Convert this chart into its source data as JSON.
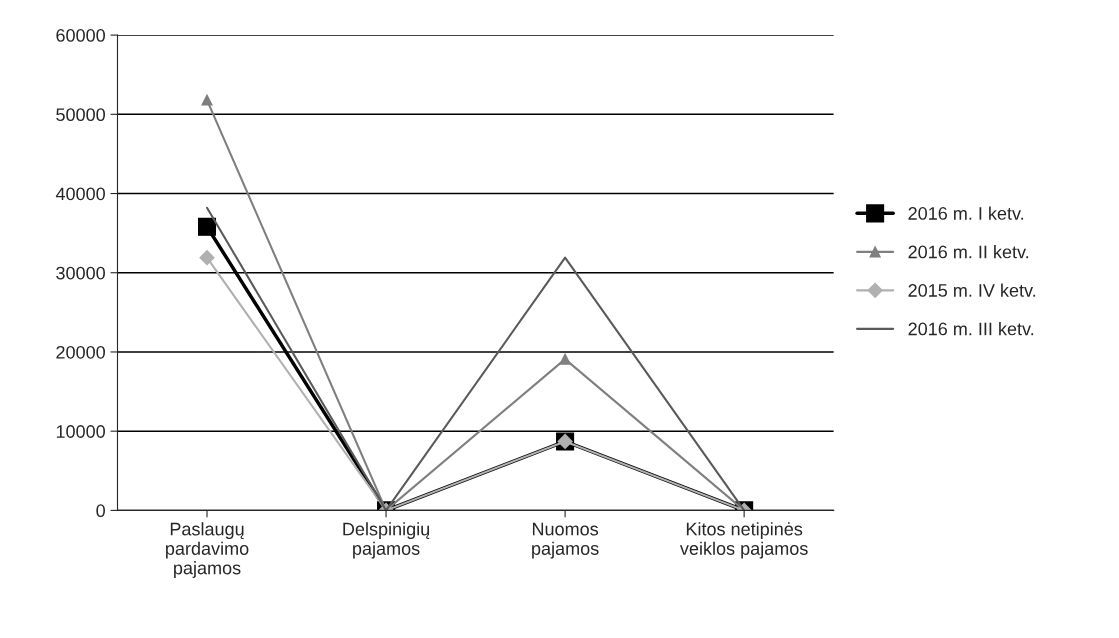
{
  "chart_data": {
    "type": "line",
    "categories": [
      "Paslaugų\npardavimo\npajamos",
      "Delspinigių\npajamos",
      "Nuomos\npajamos",
      "Kitos netipinės\nveiklos pajamos"
    ],
    "series": [
      {
        "name": "2016 m. I ketv.",
        "color": "#000000",
        "marker": "square",
        "values": [
          35800,
          0,
          8700,
          0
        ]
      },
      {
        "name": "2016 m. II ketv.",
        "color": "#7f7f7f",
        "marker": "triangle",
        "values": [
          51800,
          0,
          19100,
          0
        ]
      },
      {
        "name": "2015 m. IV ketv.",
        "color": "#b0b0b0",
        "marker": "diamond",
        "values": [
          31900,
          0,
          8700,
          0
        ]
      },
      {
        "name": "2016 m. III ketv.",
        "color": "#5a5a5a",
        "marker": "none",
        "values": [
          38200,
          0,
          31900,
          0
        ]
      }
    ],
    "ylim": [
      0,
      60000
    ],
    "yticks": [
      0,
      10000,
      20000,
      30000,
      40000,
      50000,
      60000
    ],
    "grid": "y",
    "legend": "right"
  }
}
